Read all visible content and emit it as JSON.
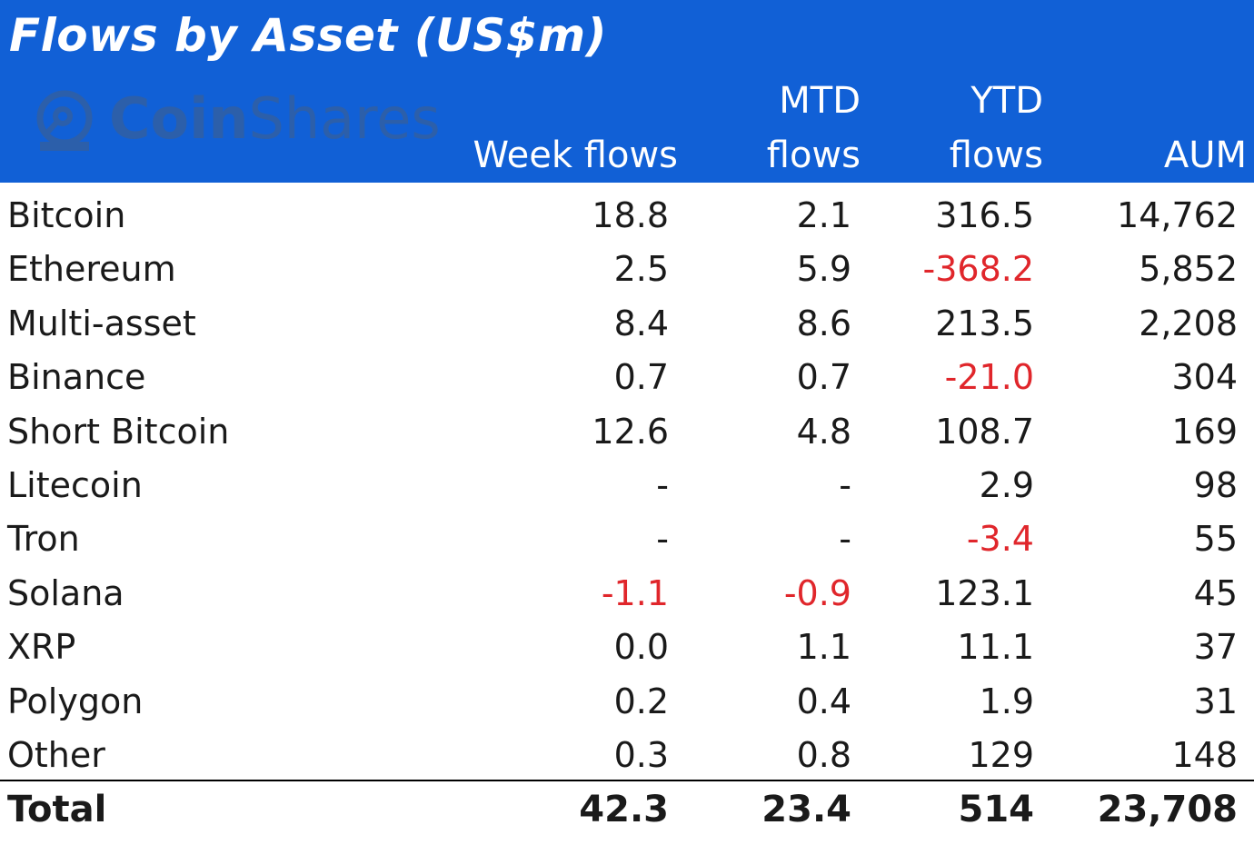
{
  "header": {
    "title": "Flows by Asset (US$m)",
    "logo_text_bold": "Coin",
    "logo_text_light": "Shares",
    "col_week": "Week flows",
    "col_mtd_1": "MTD",
    "col_mtd_2": "flows",
    "col_ytd_1": "YTD",
    "col_ytd_2": "flows",
    "col_aum": "AUM"
  },
  "colors": {
    "header_bg": "#1160d6",
    "negative": "#e0262b",
    "text": "#1a1a1a"
  },
  "chart_data": {
    "type": "table",
    "title": "Flows by Asset (US$m)",
    "columns": [
      "",
      "Week flows",
      "MTD flows",
      "YTD flows",
      "AUM"
    ],
    "rows": [
      [
        "Bitcoin",
        "18.8",
        "2.1",
        "316.5",
        "14,762"
      ],
      [
        "Ethereum",
        "2.5",
        "5.9",
        "-368.2",
        "5,852"
      ],
      [
        "Multi-asset",
        "8.4",
        "8.6",
        "213.5",
        "2,208"
      ],
      [
        "Binance",
        "0.7",
        "0.7",
        "-21.0",
        "304"
      ],
      [
        "Short Bitcoin",
        "12.6",
        "4.8",
        "108.7",
        "169"
      ],
      [
        "Litecoin",
        "-",
        "-",
        "2.9",
        "98"
      ],
      [
        "Tron",
        "-",
        "-",
        "-3.4",
        "55"
      ],
      [
        "Solana",
        "-1.1",
        "-0.9",
        "123.1",
        "45"
      ],
      [
        "XRP",
        "0.0",
        "1.1",
        "11.1",
        "37"
      ],
      [
        "Polygon",
        "0.2",
        "0.4",
        "1.9",
        "31"
      ],
      [
        "Other",
        "0.3",
        "0.8",
        "129",
        "148"
      ]
    ],
    "total": [
      "Total",
      "42.3",
      "23.4",
      "514",
      "23,708"
    ]
  }
}
